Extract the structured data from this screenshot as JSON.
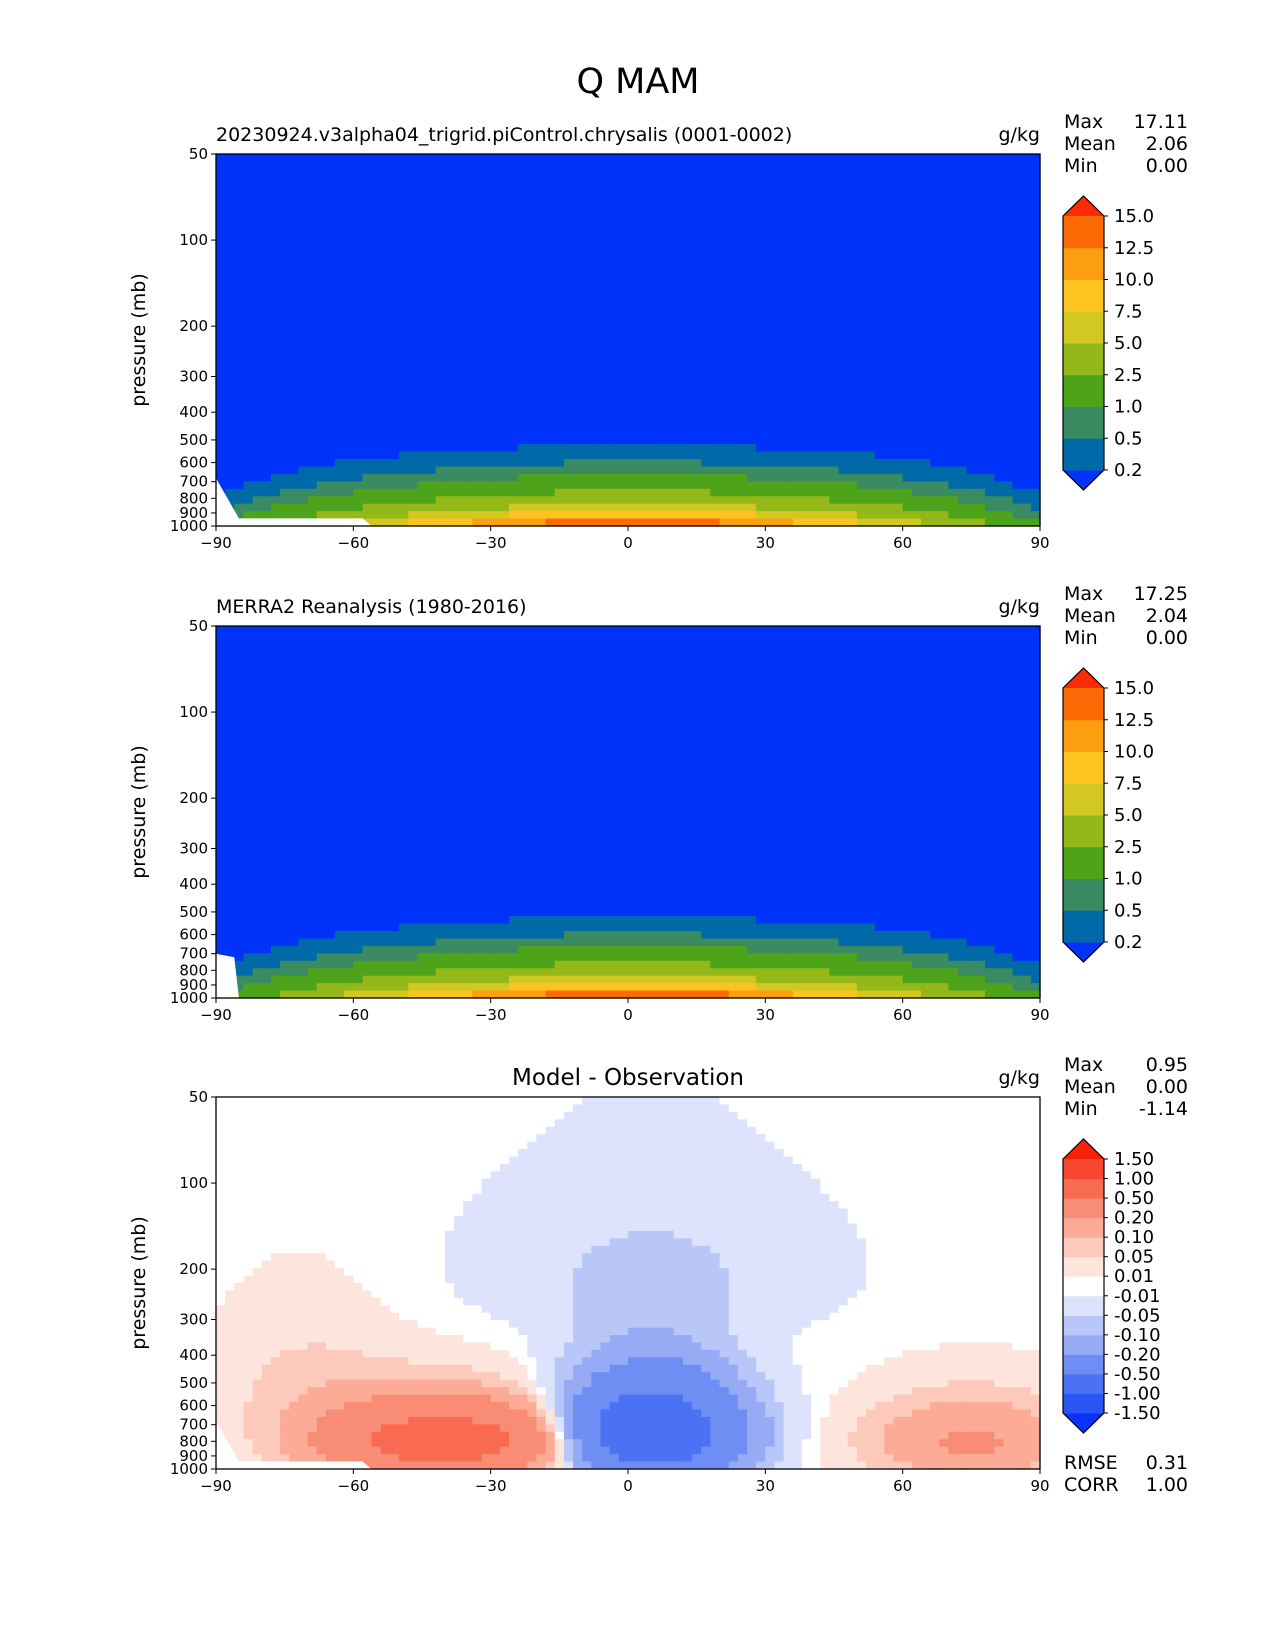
{
  "figure": {
    "title": "Q MAM"
  },
  "chart_data": [
    {
      "type": "contour",
      "title": "20230924.v3alpha04_trigrid.piControl.chrysalis (0001-0002)",
      "units": "g/kg",
      "ylabel": "pressure (mb)",
      "x_ticks": [
        "−90",
        "−60",
        "−30",
        "0",
        "30",
        "60",
        "90"
      ],
      "y_ticks": [
        "50",
        "100",
        "200",
        "300",
        "400",
        "500",
        "600",
        "700",
        "800",
        "900",
        "1000"
      ],
      "xlim": [
        -90,
        90
      ],
      "ylim": [
        1000,
        50
      ],
      "stats": {
        "labels": [
          "Max",
          "Mean",
          "Min"
        ],
        "values": [
          "17.11",
          "2.06",
          "0.00"
        ]
      },
      "colorbar": {
        "levels": [
          0.2,
          0.5,
          1.0,
          2.5,
          5.0,
          7.5,
          10.0,
          12.5,
          15.0
        ],
        "tick_labels": [
          "0.2",
          "0.5",
          "1.0",
          "2.5",
          "5.0",
          "7.5",
          "10.0",
          "12.5",
          "15.0"
        ],
        "colors": [
          "#0032fa",
          "#006aa8",
          "#3a8a62",
          "#4da31a",
          "#93b818",
          "#d2c821",
          "#fcc321",
          "#fc9d12",
          "#fc6a06",
          "#fc2c09"
        ]
      },
      "peak": {
        "lat": 0,
        "value": 17.11
      }
    },
    {
      "type": "contour",
      "title": "MERRA2 Reanalysis (1980-2016)",
      "units": "g/kg",
      "ylabel": "pressure (mb)",
      "x_ticks": [
        "−90",
        "−60",
        "−30",
        "0",
        "30",
        "60",
        "90"
      ],
      "y_ticks": [
        "50",
        "100",
        "200",
        "300",
        "400",
        "500",
        "600",
        "700",
        "800",
        "900",
        "1000"
      ],
      "xlim": [
        -90,
        90
      ],
      "ylim": [
        1000,
        50
      ],
      "stats": {
        "labels": [
          "Max",
          "Mean",
          "Min"
        ],
        "values": [
          "17.25",
          "2.04",
          "0.00"
        ]
      },
      "colorbar": {
        "levels": [
          0.2,
          0.5,
          1.0,
          2.5,
          5.0,
          7.5,
          10.0,
          12.5,
          15.0
        ],
        "tick_labels": [
          "0.2",
          "0.5",
          "1.0",
          "2.5",
          "5.0",
          "7.5",
          "10.0",
          "12.5",
          "15.0"
        ],
        "colors": [
          "#0032fa",
          "#006aa8",
          "#3a8a62",
          "#4da31a",
          "#93b818",
          "#d2c821",
          "#fcc321",
          "#fc9d12",
          "#fc6a06",
          "#fc2c09"
        ]
      },
      "peak": {
        "lat": 0,
        "value": 17.25
      }
    },
    {
      "type": "contour",
      "title": "Model - Observation",
      "units": "g/kg",
      "ylabel": "pressure (mb)",
      "x_ticks": [
        "−90",
        "−60",
        "−30",
        "0",
        "30",
        "60",
        "90"
      ],
      "y_ticks": [
        "50",
        "100",
        "200",
        "300",
        "400",
        "500",
        "600",
        "700",
        "800",
        "900",
        "1000"
      ],
      "xlim": [
        -90,
        90
      ],
      "ylim": [
        1000,
        50
      ],
      "stats": {
        "labels": [
          "Max",
          "Mean",
          "Min"
        ],
        "values": [
          "0.95",
          "0.00",
          "-1.14"
        ]
      },
      "metrics": {
        "labels": [
          "RMSE",
          "CORR"
        ],
        "values": [
          "0.31",
          "1.00"
        ]
      },
      "colorbar": {
        "levels": [
          -1.5,
          -1.0,
          -0.5,
          -0.2,
          -0.1,
          -0.05,
          -0.01,
          0.01,
          0.05,
          0.1,
          0.2,
          0.5,
          1.0,
          1.5
        ],
        "tick_labels": [
          "-1.50",
          "-1.00",
          "-0.50",
          "-0.20",
          "-0.10",
          "-0.05",
          "-0.01",
          "0.01",
          "0.05",
          "0.10",
          "0.20",
          "0.50",
          "1.00",
          "1.50"
        ],
        "colors": [
          "#0a32fa",
          "#2a55f5",
          "#4a72f2",
          "#6f8ef4",
          "#97aaf6",
          "#b8c6f8",
          "#dde3fc",
          "#ffffff",
          "#fde4dc",
          "#fcc9bb",
          "#fbab96",
          "#f98c74",
          "#f86a52",
          "#f7472e",
          "#fc2009"
        ]
      }
    }
  ]
}
